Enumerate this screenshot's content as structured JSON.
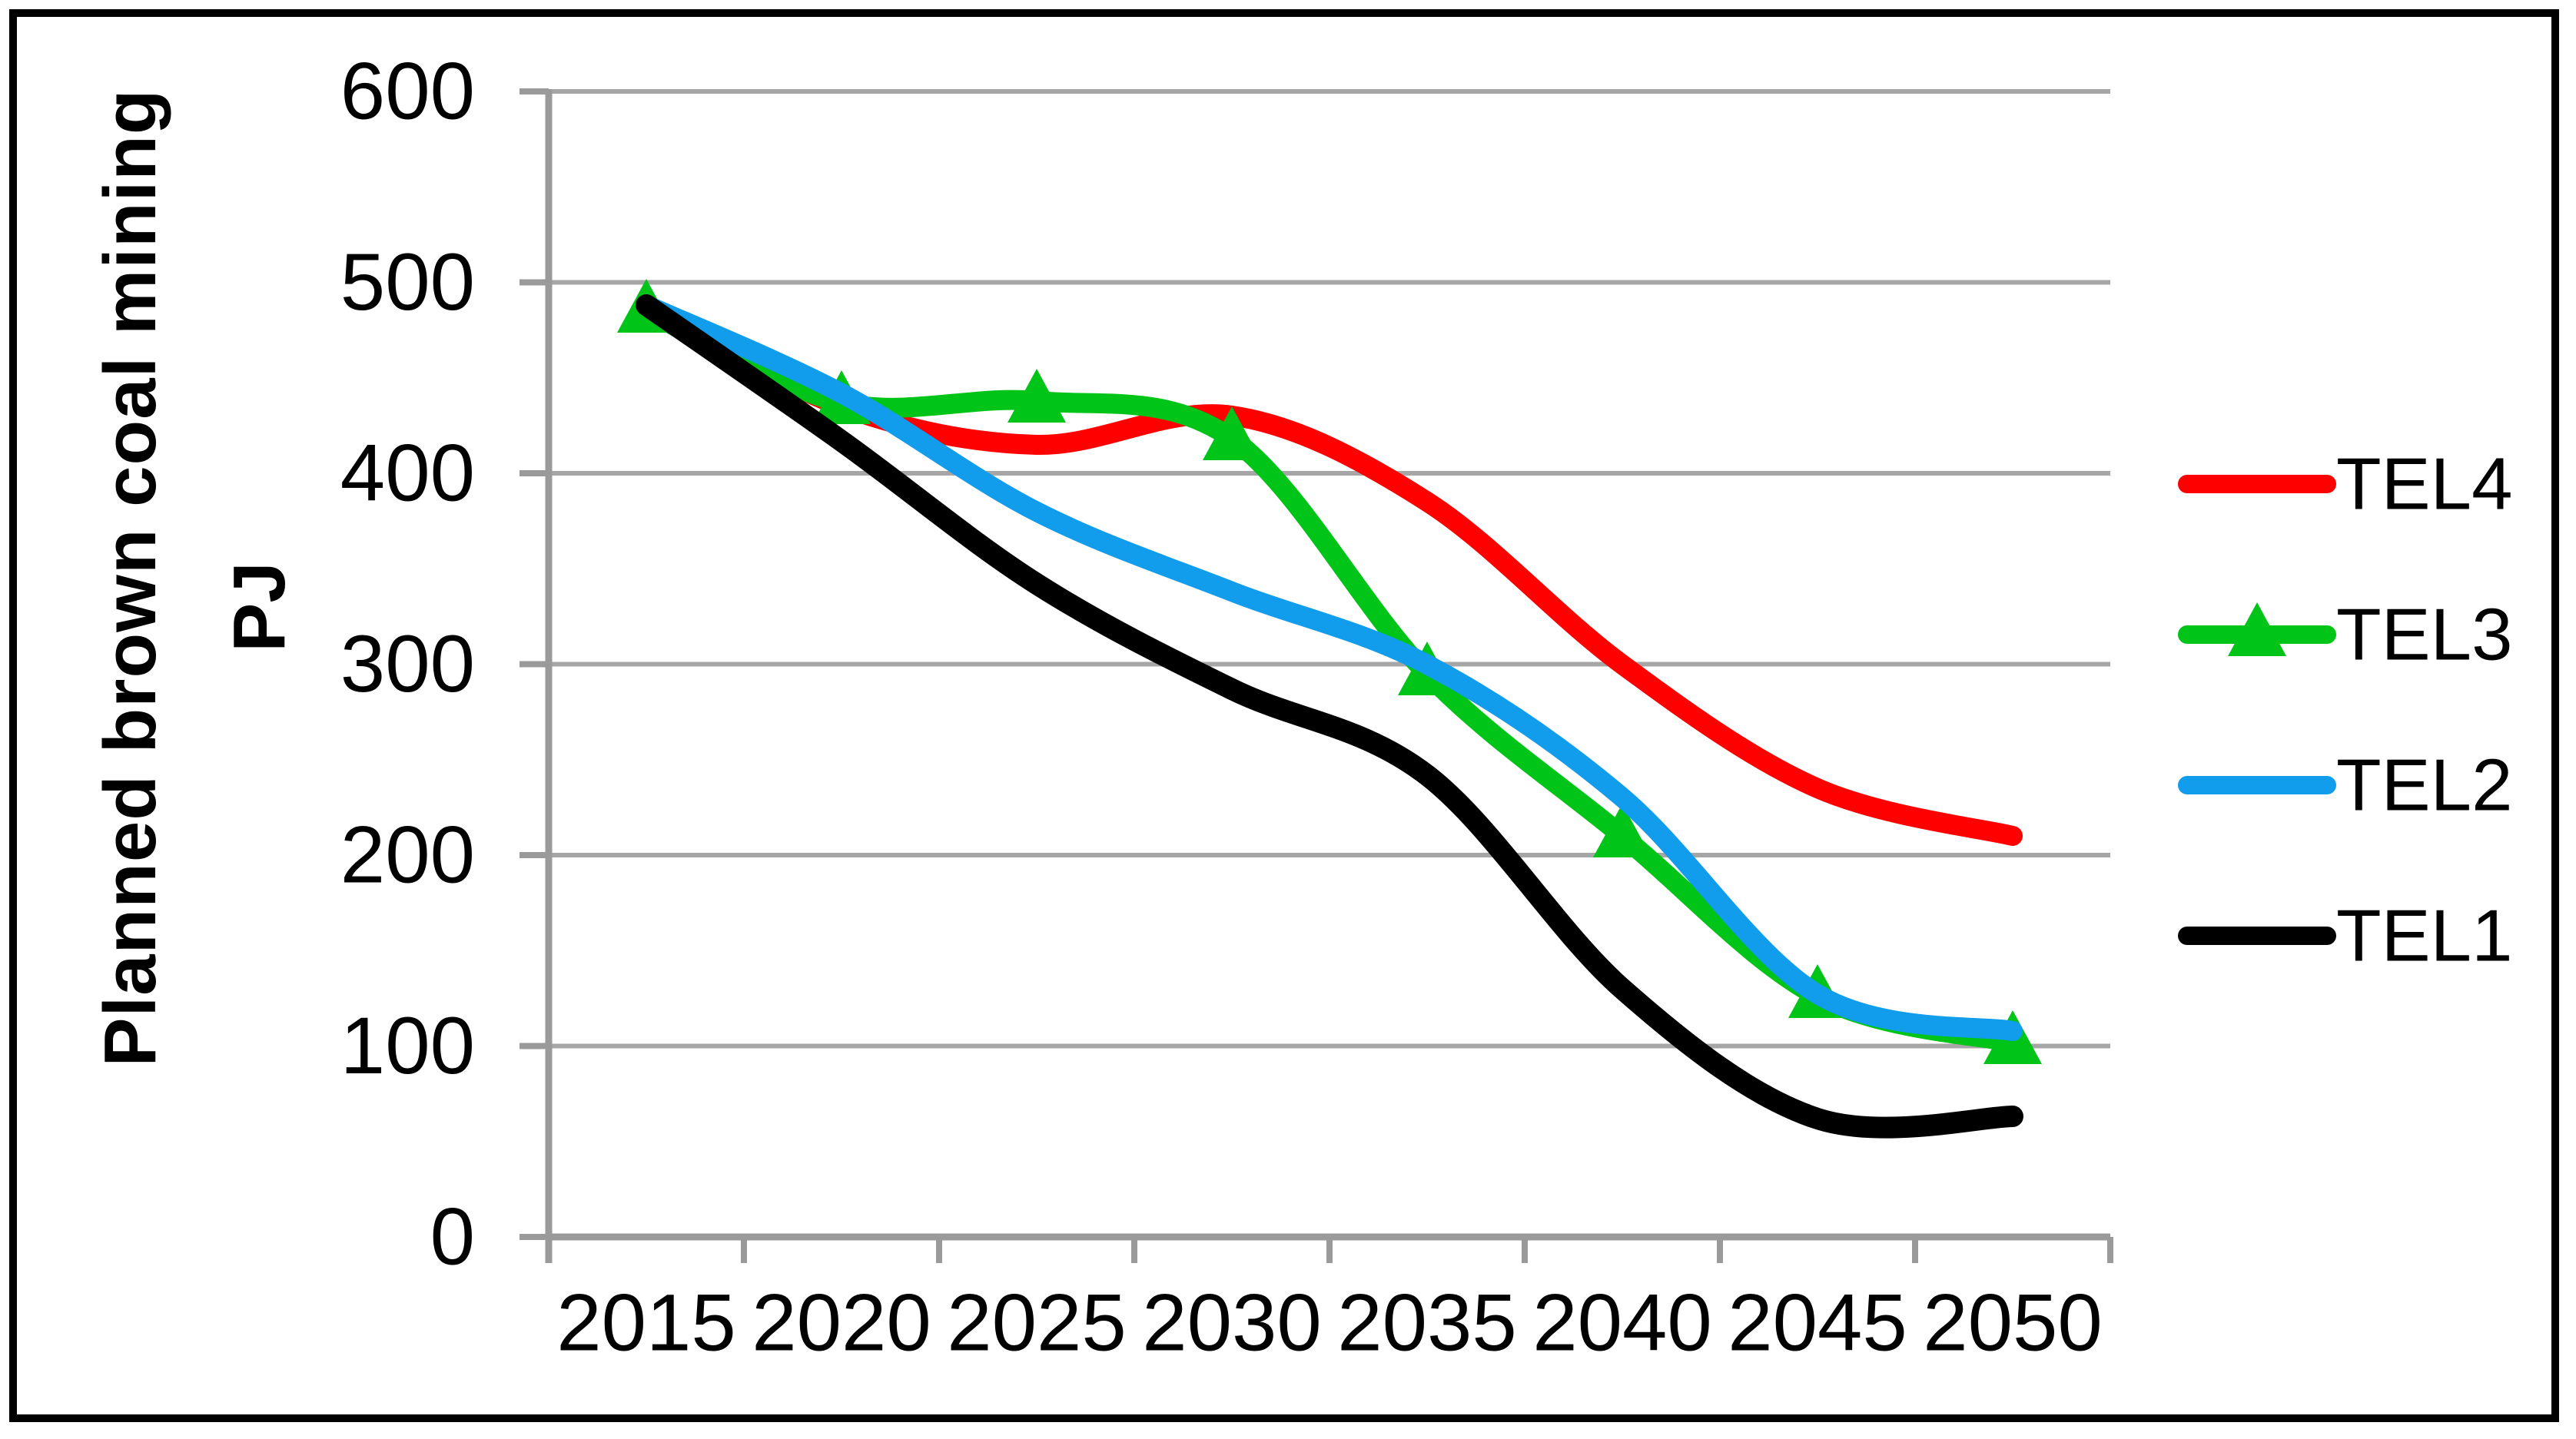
{
  "chart_data": {
    "type": "line",
    "title": "",
    "ylabel_outer": "Planned brown coal mining",
    "ylabel_inner": "PJ",
    "xlabel": "",
    "categories": [
      "2015",
      "2020",
      "2025",
      "2030",
      "2035",
      "2040",
      "2045",
      "2050"
    ],
    "yticks": [
      "0",
      "100",
      "200",
      "300",
      "400",
      "500",
      "600"
    ],
    "ytick_values": [
      0,
      100,
      200,
      300,
      400,
      500,
      600
    ],
    "ylim": [
      0,
      600
    ],
    "grid": "horizontal-only",
    "smooth_lines": true,
    "legend_position": "right",
    "colors": {
      "grid": "#A6A6A6",
      "axis": "#9A9A9A",
      "border": "#000000",
      "background": "#FFFFFF",
      "text": "#000000"
    },
    "series": [
      {
        "name": "TEL4",
        "color": "#FF0000",
        "marker": "none",
        "values": [
          488,
          435,
          415,
          430,
          385,
          300,
          235,
          210
        ]
      },
      {
        "name": "TEL3",
        "color": "#00C417",
        "marker": "triangle",
        "values": [
          485,
          437,
          438,
          418,
          295,
          210,
          126,
          102
        ]
      },
      {
        "name": "TEL2",
        "color": "#119CEC",
        "marker": "none",
        "values": [
          488,
          442,
          380,
          338,
          300,
          230,
          127,
          108
        ]
      },
      {
        "name": "TEL1",
        "color": "#000000",
        "marker": "none",
        "values": [
          488,
          417,
          342,
          287,
          242,
          130,
          62,
          63
        ]
      }
    ],
    "legend_order": [
      "TEL4",
      "TEL3",
      "TEL2",
      "TEL1"
    ]
  }
}
